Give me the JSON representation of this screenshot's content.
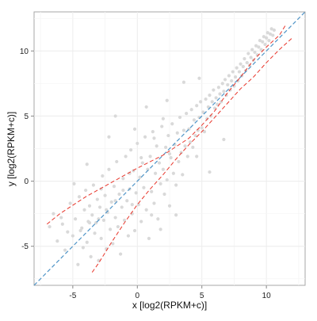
{
  "chart_data": {
    "type": "scatter",
    "title": "",
    "xlabel": "x [log2(RPKM+c)]",
    "ylabel": "y [log2(RPKM+c)]",
    "xlim": [
      -8,
      13
    ],
    "ylim": [
      -8,
      13
    ],
    "x_ticks": [
      -5,
      0,
      5,
      10
    ],
    "y_ticks": [
      -5,
      0,
      5,
      10
    ],
    "x_tick_labels": [
      "-5",
      "0",
      "5",
      "10"
    ],
    "y_tick_labels": [
      "-5",
      "0",
      "5",
      "10"
    ],
    "grid": true,
    "legend": "none",
    "point_color": "#d9d9d9",
    "identity_line": {
      "color": "#4f94c7",
      "style": "dashed",
      "points": [
        [
          -8,
          -8
        ],
        [
          13,
          13
        ]
      ]
    },
    "bounds": {
      "color": "#e8352a",
      "style": "dashed",
      "upper": [
        [
          -7,
          -3.3
        ],
        [
          -6,
          -2.5
        ],
        [
          -4,
          -1.2
        ],
        [
          -2,
          -0.1
        ],
        [
          0,
          1.0
        ],
        [
          2,
          2.0
        ],
        [
          4,
          3.3
        ],
        [
          5,
          4.3
        ],
        [
          6,
          5.4
        ],
        [
          7,
          6.8
        ],
        [
          8,
          8.0
        ],
        [
          9,
          9.3
        ],
        [
          10,
          10.3
        ],
        [
          11,
          11.2
        ],
        [
          11.5,
          12.0
        ]
      ],
      "lower": [
        [
          -3.5,
          -7.0
        ],
        [
          -3,
          -6.3
        ],
        [
          -2,
          -4.7
        ],
        [
          -1,
          -3.2
        ],
        [
          0,
          -1.8
        ],
        [
          1,
          -0.6
        ],
        [
          2,
          0.5
        ],
        [
          3,
          1.7
        ],
        [
          4,
          2.8
        ],
        [
          5,
          3.8
        ],
        [
          6,
          4.9
        ],
        [
          7,
          6.0
        ],
        [
          8,
          7.1
        ],
        [
          9,
          8.0
        ],
        [
          10,
          9.1
        ],
        [
          11,
          10.1
        ],
        [
          12,
          11.0
        ]
      ]
    },
    "points": [
      [
        -6.8,
        -3.5
      ],
      [
        -6.2,
        -4.6
      ],
      [
        -5.9,
        -2.8
      ],
      [
        -5.6,
        -5.3
      ],
      [
        -5.4,
        -3.9
      ],
      [
        -5.2,
        -1.7
      ],
      [
        -5.0,
        -4.2
      ],
      [
        -4.8,
        -2.9
      ],
      [
        -4.6,
        -6.4
      ],
      [
        -4.5,
        -1.2
      ],
      [
        -4.3,
        -3.6
      ],
      [
        -4.2,
        -5.1
      ],
      [
        -4.1,
        -2.2
      ],
      [
        -4.0,
        -0.7
      ],
      [
        -3.9,
        -4.7
      ],
      [
        -3.8,
        -3.1
      ],
      [
        -3.7,
        -1.9
      ],
      [
        -3.6,
        -5.8
      ],
      [
        -3.5,
        -2.6
      ],
      [
        -3.4,
        -0.3
      ],
      [
        -3.3,
        -4.0
      ],
      [
        -3.2,
        -3.2
      ],
      [
        -3.1,
        -1.4
      ],
      [
        -3.0,
        -6.1
      ],
      [
        -2.9,
        -2.0
      ],
      [
        -2.8,
        -4.4
      ],
      [
        -2.7,
        0.4
      ],
      [
        -2.6,
        -3.0
      ],
      [
        -2.5,
        -1.1
      ],
      [
        -2.4,
        -5.2
      ],
      [
        -2.3,
        -2.4
      ],
      [
        -2.2,
        0.9
      ],
      [
        -2.1,
        -3.7
      ],
      [
        -2.0,
        -1.6
      ],
      [
        -1.9,
        -4.8
      ],
      [
        -1.8,
        -0.4
      ],
      [
        -1.7,
        -2.8
      ],
      [
        -1.6,
        1.5
      ],
      [
        -1.5,
        -3.5
      ],
      [
        -1.4,
        -1.0
      ],
      [
        -1.3,
        -5.6
      ],
      [
        -1.2,
        -2.0
      ],
      [
        -1.1,
        0.2
      ],
      [
        -1.0,
        -3.0
      ],
      [
        -0.9,
        1.9
      ],
      [
        -0.8,
        -1.5
      ],
      [
        -0.7,
        -4.2
      ],
      [
        -0.6,
        -0.6
      ],
      [
        -0.5,
        2.4
      ],
      [
        -0.4,
        -2.5
      ],
      [
        -0.3,
        0.8
      ],
      [
        -0.2,
        -3.8
      ],
      [
        -0.1,
        -0.9
      ],
      [
        0.0,
        2.9
      ],
      [
        0.1,
        -1.8
      ],
      [
        0.2,
        0.3
      ],
      [
        0.3,
        -3.1
      ],
      [
        0.4,
        1.4
      ],
      [
        0.5,
        -0.5
      ],
      [
        0.6,
        3.4
      ],
      [
        0.7,
        -2.2
      ],
      [
        0.8,
        0.9
      ],
      [
        0.9,
        -4.4
      ],
      [
        1.0,
        1.9
      ],
      [
        1.1,
        -0.8
      ],
      [
        1.2,
        3.8
      ],
      [
        1.3,
        -1.7
      ],
      [
        1.4,
        0.6
      ],
      [
        1.5,
        2.7
      ],
      [
        1.6,
        -2.9
      ],
      [
        1.7,
        1.4
      ],
      [
        1.8,
        -0.2
      ],
      [
        1.9,
        4.2
      ],
      [
        2.0,
        0.9
      ],
      [
        2.1,
        -1.0
      ],
      [
        2.2,
        2.6
      ],
      [
        2.3,
        0.1
      ],
      [
        2.4,
        3.5
      ],
      [
        2.5,
        -1.9
      ],
      [
        2.6,
        1.8
      ],
      [
        2.7,
        4.4
      ],
      [
        2.8,
        0.6
      ],
      [
        2.9,
        2.8
      ],
      [
        3.0,
        -0.3
      ],
      [
        3.1,
        3.7
      ],
      [
        3.2,
        1.5
      ],
      [
        3.3,
        4.9
      ],
      [
        3.4,
        2.2
      ],
      [
        3.5,
        0.5
      ],
      [
        3.6,
        3.9
      ],
      [
        3.7,
        2.7
      ],
      [
        3.8,
        5.2
      ],
      [
        3.9,
        1.9
      ],
      [
        4.0,
        4.0
      ],
      [
        4.1,
        3.0
      ],
      [
        4.2,
        5.5
      ],
      [
        4.3,
        2.6
      ],
      [
        4.4,
        4.7
      ],
      [
        4.5,
        3.5
      ],
      [
        4.6,
        5.8
      ],
      [
        4.7,
        3.9
      ],
      [
        4.8,
        4.9
      ],
      [
        4.9,
        6.1
      ],
      [
        5.0,
        4.1
      ],
      [
        5.1,
        5.3
      ],
      [
        5.2,
        3.8
      ],
      [
        5.3,
        6.3
      ],
      [
        5.4,
        4.8
      ],
      [
        5.5,
        5.7
      ],
      [
        5.6,
        6.6
      ],
      [
        5.7,
        5.0
      ],
      [
        5.8,
        6.1
      ],
      [
        5.9,
        7.0
      ],
      [
        6.0,
        5.6
      ],
      [
        6.1,
        6.4
      ],
      [
        6.2,
        5.9
      ],
      [
        6.3,
        7.2
      ],
      [
        6.4,
        6.7
      ],
      [
        6.5,
        6.1
      ],
      [
        6.6,
        7.5
      ],
      [
        6.7,
        6.9
      ],
      [
        6.8,
        7.8
      ],
      [
        6.9,
        6.6
      ],
      [
        7.0,
        7.4
      ],
      [
        7.1,
        8.1
      ],
      [
        7.2,
        7.0
      ],
      [
        7.3,
        7.7
      ],
      [
        7.4,
        8.4
      ],
      [
        7.5,
        7.3
      ],
      [
        7.6,
        8.0
      ],
      [
        7.7,
        8.7
      ],
      [
        7.8,
        7.7
      ],
      [
        7.9,
        8.4
      ],
      [
        8.0,
        9.0
      ],
      [
        8.1,
        8.1
      ],
      [
        8.2,
        8.8
      ],
      [
        8.3,
        9.4
      ],
      [
        8.4,
        8.5
      ],
      [
        8.5,
        9.1
      ],
      [
        8.6,
        9.8
      ],
      [
        8.7,
        8.9
      ],
      [
        8.8,
        9.5
      ],
      [
        8.9,
        10.1
      ],
      [
        9.0,
        9.3
      ],
      [
        9.1,
        9.9
      ],
      [
        9.2,
        10.4
      ],
      [
        9.3,
        9.7
      ],
      [
        9.4,
        10.3
      ],
      [
        9.5,
        10.8
      ],
      [
        9.6,
        10.1
      ],
      [
        9.7,
        10.7
      ],
      [
        9.8,
        11.1
      ],
      [
        9.9,
        10.5
      ],
      [
        10.0,
        11.0
      ],
      [
        10.1,
        11.4
      ],
      [
        10.2,
        10.8
      ],
      [
        10.3,
        11.3
      ],
      [
        10.4,
        11.7
      ],
      [
        10.5,
        11.2
      ],
      [
        10.6,
        11.6
      ],
      [
        2.5,
        2.1
      ],
      [
        1.3,
        3.3
      ],
      [
        0.3,
        1.8
      ],
      [
        -0.6,
        0.6
      ],
      [
        -1.1,
        -0.7
      ],
      [
        -1.7,
        -1.5
      ],
      [
        -2.4,
        -2.2
      ],
      [
        -3.0,
        -2.9
      ],
      [
        -3.7,
        -3.2
      ],
      [
        -4.4,
        -3.8
      ],
      [
        4.8,
        7.9
      ],
      [
        2.3,
        6.2
      ],
      [
        -0.2,
        4.0
      ],
      [
        6.7,
        3.2
      ],
      [
        4.6,
        1.9
      ],
      [
        -2.2,
        3.4
      ],
      [
        -3.9,
        1.3
      ],
      [
        1.8,
        -3.7
      ],
      [
        3.0,
        -2.6
      ],
      [
        5.6,
        0.7
      ],
      [
        -1.7,
        5.0
      ],
      [
        0.7,
        5.7
      ],
      [
        3.6,
        7.6
      ],
      [
        2.0,
        4.8
      ],
      [
        1.1,
        -2.6
      ],
      [
        -0.4,
        -1.8
      ],
      [
        -2.8,
        -0.6
      ],
      [
        -4.9,
        -0.2
      ],
      [
        -5.8,
        -3.3
      ],
      [
        -6.5,
        -2.5
      ]
    ]
  }
}
